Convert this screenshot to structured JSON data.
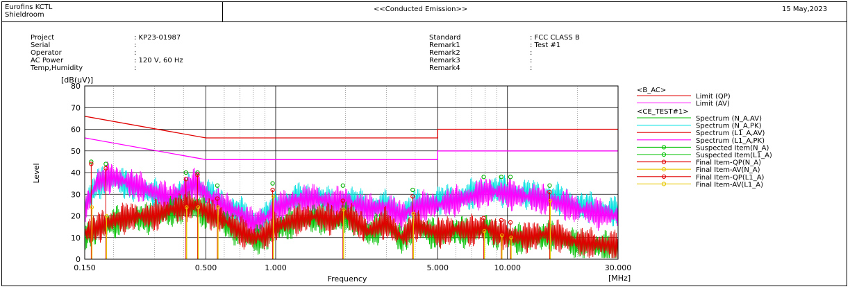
{
  "header": {
    "lab_line1": "Eurofins KCTL",
    "lab_line2": "Shieldroom",
    "title": "<<Conducted Emission>>",
    "date": "15 May,2023"
  },
  "info_left": [
    {
      "label": "Project",
      "value": ": KP23-01987"
    },
    {
      "label": "Serial",
      "value": ":"
    },
    {
      "label": "Operator",
      "value": ":"
    },
    {
      "label": "AC Power",
      "value": ": 120 V, 60 Hz"
    },
    {
      "label": "Temp,Humidity",
      "value": ":"
    }
  ],
  "info_right": [
    {
      "label": "Standard",
      "value": ": FCC CLASS B"
    },
    {
      "label": "Remark1",
      "value": ": Test #1"
    },
    {
      "label": "Remark2",
      "value": ":"
    },
    {
      "label": "Remark3",
      "value": ":"
    },
    {
      "label": "Remark4",
      "value": ":"
    }
  ],
  "legend": {
    "group1_title": "<B_AC>",
    "group2_title": "<CE_TEST#1>",
    "entries": [
      {
        "label": "Limit (QP)",
        "color": "#e00000",
        "marker": "none",
        "group": 1
      },
      {
        "label": "Limit (AV)",
        "color": "#ff00ff",
        "marker": "none",
        "group": 1
      },
      {
        "label": "Spectrum (N_A,AV)",
        "color": "#00c000",
        "marker": "none",
        "group": 2
      },
      {
        "label": "Spectrum (N_A,PK)",
        "color": "#00e0e0",
        "marker": "none",
        "group": 2
      },
      {
        "label": "Spectrum (L1_A,AV)",
        "color": "#e00000",
        "marker": "none",
        "group": 2
      },
      {
        "label": "Spectrum (L1_A,PK)",
        "color": "#ff00ff",
        "marker": "none",
        "group": 2
      },
      {
        "label": "Suspected Item(N_A)",
        "color": "#00c000",
        "marker": "circle",
        "group": 2
      },
      {
        "label": "Suspected Item(L1_A)",
        "color": "#00c000",
        "marker": "circle",
        "group": 2
      },
      {
        "label": "Final Item-QP(N_A)",
        "color": "#e00000",
        "marker": "circle",
        "group": 2
      },
      {
        "label": "Final Item-AV(N_A)",
        "color": "#e8c800",
        "marker": "circle",
        "group": 2
      },
      {
        "label": "Final Item-QP(L1_A)",
        "color": "#e00000",
        "marker": "circle",
        "group": 2
      },
      {
        "label": "Final Item-AV(L1_A)",
        "color": "#e8c800",
        "marker": "circle",
        "group": 2
      }
    ]
  },
  "chart_data": {
    "type": "line",
    "x_scale": "log",
    "xlim": [
      0.15,
      30
    ],
    "ylim": [
      0,
      80
    ],
    "grid": true,
    "legend_position": "right",
    "xlabel": "Frequency",
    "x_unit": "[MHz]",
    "ylabel": "Level",
    "y_unit": "[dB(uV)]",
    "x_ticks": [
      {
        "value": 0.15,
        "label": "0.150"
      },
      {
        "value": 0.5,
        "label": "0.500"
      },
      {
        "value": 1,
        "label": "1.000"
      },
      {
        "value": 5,
        "label": "5.000"
      },
      {
        "value": 10,
        "label": "10.000"
      },
      {
        "value": 30,
        "label": "30.000"
      }
    ],
    "y_ticks": [
      0,
      10,
      20,
      30,
      40,
      50,
      60,
      70,
      80
    ],
    "limits": [
      {
        "name": "Limit (QP)",
        "color": "#e00000",
        "points": [
          [
            0.15,
            66
          ],
          [
            0.5,
            56
          ],
          [
            5,
            56
          ],
          [
            5,
            60
          ],
          [
            30,
            60
          ]
        ]
      },
      {
        "name": "Limit (AV)",
        "color": "#ff00ff",
        "points": [
          [
            0.15,
            56
          ],
          [
            0.5,
            46
          ],
          [
            5,
            46
          ],
          [
            5,
            50
          ],
          [
            30,
            50
          ]
        ]
      }
    ],
    "spectra": [
      {
        "name": "Spectrum (N_A,PK)",
        "color": "#00e0e0",
        "points": [
          [
            0.15,
            28
          ],
          [
            0.17,
            38
          ],
          [
            0.2,
            40
          ],
          [
            0.25,
            36
          ],
          [
            0.3,
            33
          ],
          [
            0.35,
            30
          ],
          [
            0.4,
            34
          ],
          [
            0.45,
            37
          ],
          [
            0.5,
            34
          ],
          [
            0.6,
            28
          ],
          [
            0.7,
            25
          ],
          [
            0.8,
            20
          ],
          [
            0.9,
            23
          ],
          [
            1.0,
            27
          ],
          [
            1.2,
            31
          ],
          [
            1.5,
            32
          ],
          [
            1.8,
            28
          ],
          [
            2.0,
            31
          ],
          [
            2.5,
            27
          ],
          [
            3.0,
            28
          ],
          [
            3.5,
            24
          ],
          [
            4.0,
            28
          ],
          [
            5.0,
            30
          ],
          [
            6.0,
            31
          ],
          [
            7.0,
            33
          ],
          [
            8.0,
            35
          ],
          [
            9.0,
            35
          ],
          [
            10.0,
            34
          ],
          [
            12.0,
            33
          ],
          [
            15.0,
            32
          ],
          [
            18.0,
            30
          ],
          [
            20.0,
            28
          ],
          [
            25.0,
            26
          ],
          [
            30.0,
            25
          ]
        ]
      },
      {
        "name": "Spectrum (L1_A,PK)",
        "color": "#ff00ff",
        "points": [
          [
            0.15,
            26
          ],
          [
            0.17,
            39
          ],
          [
            0.2,
            41
          ],
          [
            0.25,
            37
          ],
          [
            0.3,
            34
          ],
          [
            0.35,
            31
          ],
          [
            0.4,
            35
          ],
          [
            0.45,
            38
          ],
          [
            0.5,
            33
          ],
          [
            0.6,
            27
          ],
          [
            0.7,
            24
          ],
          [
            0.8,
            19
          ],
          [
            0.9,
            22
          ],
          [
            1.0,
            26
          ],
          [
            1.2,
            30
          ],
          [
            1.5,
            31
          ],
          [
            1.8,
            29
          ],
          [
            2.0,
            30
          ],
          [
            2.5,
            26
          ],
          [
            3.0,
            27
          ],
          [
            3.5,
            23
          ],
          [
            4.0,
            27
          ],
          [
            5.0,
            28
          ],
          [
            6.0,
            30
          ],
          [
            7.0,
            32
          ],
          [
            8.0,
            34
          ],
          [
            9.0,
            34
          ],
          [
            10.0,
            33
          ],
          [
            12.0,
            32
          ],
          [
            15.0,
            30
          ],
          [
            18.0,
            28
          ],
          [
            20.0,
            26
          ],
          [
            25.0,
            24
          ],
          [
            30.0,
            23
          ]
        ]
      },
      {
        "name": "Spectrum (N_A,AV)",
        "color": "#00c000",
        "points": [
          [
            0.15,
            14
          ],
          [
            0.2,
            20
          ],
          [
            0.25,
            22
          ],
          [
            0.3,
            22
          ],
          [
            0.35,
            25
          ],
          [
            0.4,
            26
          ],
          [
            0.45,
            27
          ],
          [
            0.5,
            24
          ],
          [
            0.6,
            20
          ],
          [
            0.7,
            15
          ],
          [
            0.8,
            12
          ],
          [
            0.9,
            13
          ],
          [
            1.0,
            17
          ],
          [
            1.2,
            20
          ],
          [
            1.5,
            22
          ],
          [
            1.8,
            20
          ],
          [
            2.0,
            23
          ],
          [
            2.5,
            15
          ],
          [
            3.0,
            19
          ],
          [
            3.5,
            12
          ],
          [
            4.0,
            18
          ],
          [
            5.0,
            14
          ],
          [
            6.0,
            16
          ],
          [
            7.0,
            15
          ],
          [
            8.0,
            17
          ],
          [
            9.0,
            14
          ],
          [
            10.0,
            13
          ],
          [
            12.0,
            12
          ],
          [
            15.0,
            14
          ],
          [
            20.0,
            10
          ],
          [
            25.0,
            9
          ],
          [
            30.0,
            8
          ]
        ]
      },
      {
        "name": "Spectrum (L1_A,AV)",
        "color": "#e00000",
        "points": [
          [
            0.15,
            15
          ],
          [
            0.2,
            21
          ],
          [
            0.25,
            23
          ],
          [
            0.3,
            23
          ],
          [
            0.35,
            26
          ],
          [
            0.4,
            27
          ],
          [
            0.45,
            28
          ],
          [
            0.5,
            25
          ],
          [
            0.6,
            21
          ],
          [
            0.7,
            16
          ],
          [
            0.8,
            13
          ],
          [
            0.9,
            14
          ],
          [
            1.0,
            18
          ],
          [
            1.2,
            21
          ],
          [
            1.5,
            23
          ],
          [
            1.8,
            21
          ],
          [
            2.0,
            24
          ],
          [
            2.5,
            16
          ],
          [
            3.0,
            20
          ],
          [
            3.5,
            13
          ],
          [
            4.0,
            19
          ],
          [
            5.0,
            15
          ],
          [
            6.0,
            17
          ],
          [
            7.0,
            16
          ],
          [
            8.0,
            18
          ],
          [
            9.0,
            15
          ],
          [
            10.0,
            14
          ],
          [
            12.0,
            13
          ],
          [
            15.0,
            15
          ],
          [
            20.0,
            11
          ],
          [
            25.0,
            10
          ],
          [
            30.0,
            9
          ]
        ]
      }
    ],
    "suspected_items": [
      [
        0.16,
        45
      ],
      [
        0.185,
        44
      ],
      [
        0.41,
        40
      ],
      [
        0.46,
        40
      ],
      [
        0.56,
        34
      ],
      [
        0.97,
        35
      ],
      [
        1.95,
        34
      ],
      [
        3.9,
        32
      ],
      [
        7.9,
        38
      ],
      [
        9.4,
        38
      ],
      [
        10.3,
        38
      ],
      [
        15.2,
        34
      ]
    ],
    "final_items_qp": [
      [
        0.16,
        44
      ],
      [
        0.185,
        42
      ],
      [
        0.41,
        37
      ],
      [
        0.46,
        39
      ],
      [
        0.56,
        28
      ],
      [
        0.97,
        32
      ],
      [
        1.95,
        27
      ],
      [
        3.9,
        29
      ],
      [
        7.9,
        19
      ],
      [
        9.4,
        18
      ],
      [
        10.3,
        17
      ],
      [
        15.2,
        31
      ]
    ],
    "final_items_av": [
      [
        0.16,
        24
      ],
      [
        0.185,
        20
      ],
      [
        0.41,
        24
      ],
      [
        0.46,
        24
      ],
      [
        0.56,
        24
      ],
      [
        0.97,
        29
      ],
      [
        1.95,
        23
      ],
      [
        3.9,
        21
      ],
      [
        7.9,
        13
      ],
      [
        9.4,
        11
      ],
      [
        10.3,
        10
      ],
      [
        15.2,
        27
      ]
    ]
  }
}
